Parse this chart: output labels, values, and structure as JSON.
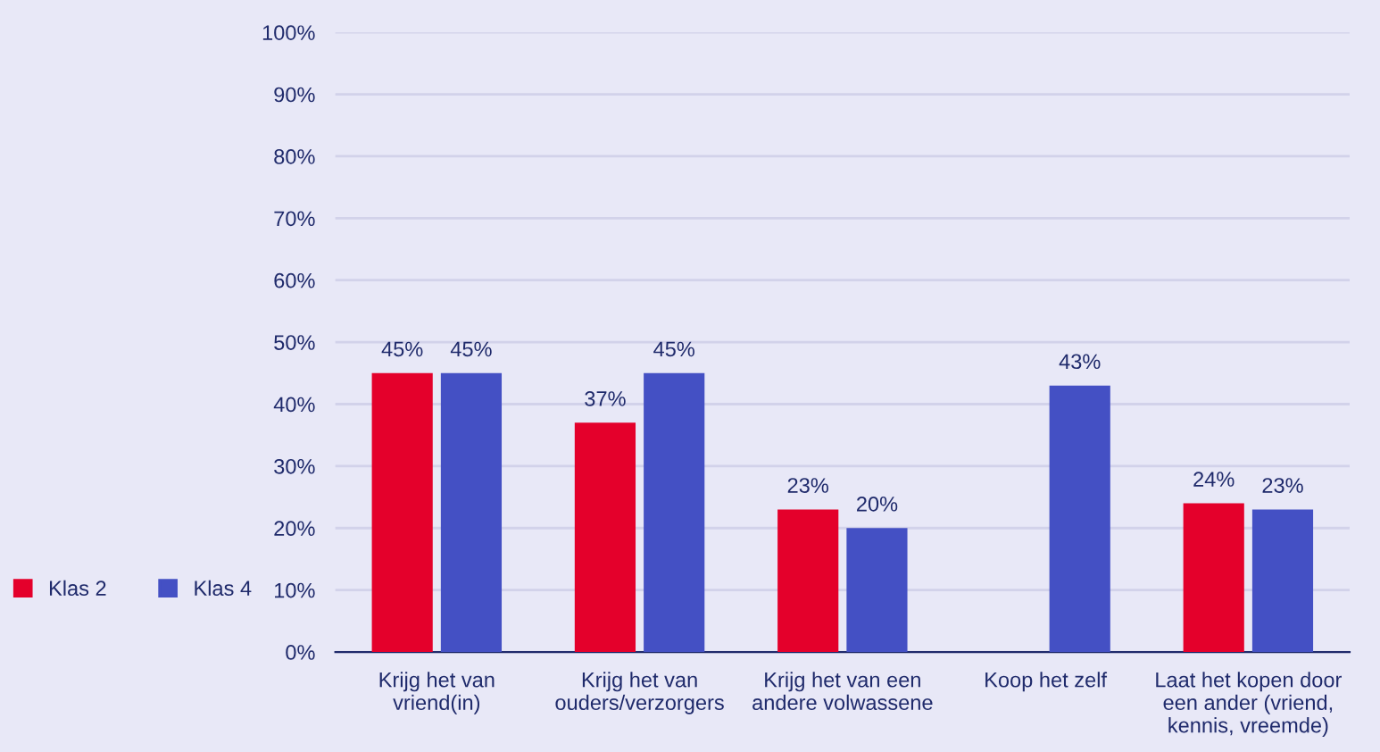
{
  "chart_data": {
    "type": "bar",
    "categories": [
      "Krijg het van\nvriend(in)",
      "Krijg het van\nouders/verzorgers",
      "Krijg het van een\nandere volwassene",
      "Koop het zelf",
      "Laat het kopen door\neen ander (vriend,\nkennis, vreemde)"
    ],
    "series": [
      {
        "name": "Klas 2",
        "color": "#e4002b",
        "values": [
          45,
          37,
          23,
          null,
          24
        ],
        "value_labels": [
          "45%",
          "37%",
          "23%",
          null,
          "24%"
        ]
      },
      {
        "name": "Klas 4",
        "color": "#4450c4",
        "values": [
          45,
          45,
          20,
          43,
          23
        ],
        "value_labels": [
          "45%",
          "45%",
          "20%",
          "43%",
          "23%"
        ]
      }
    ],
    "ylim": [
      0,
      100
    ],
    "yticks": [
      {
        "value": 0,
        "label": "0%"
      },
      {
        "value": 10,
        "label": "10%"
      },
      {
        "value": 20,
        "label": "20%"
      },
      {
        "value": 30,
        "label": "30%"
      },
      {
        "value": 40,
        "label": "40%"
      },
      {
        "value": 50,
        "label": "50%"
      },
      {
        "value": 60,
        "label": "60%"
      },
      {
        "value": 70,
        "label": "70%"
      },
      {
        "value": 80,
        "label": "80%"
      },
      {
        "value": 90,
        "label": "90%"
      },
      {
        "value": 100,
        "label": "100%"
      }
    ],
    "grid": "y",
    "legend": "left"
  }
}
